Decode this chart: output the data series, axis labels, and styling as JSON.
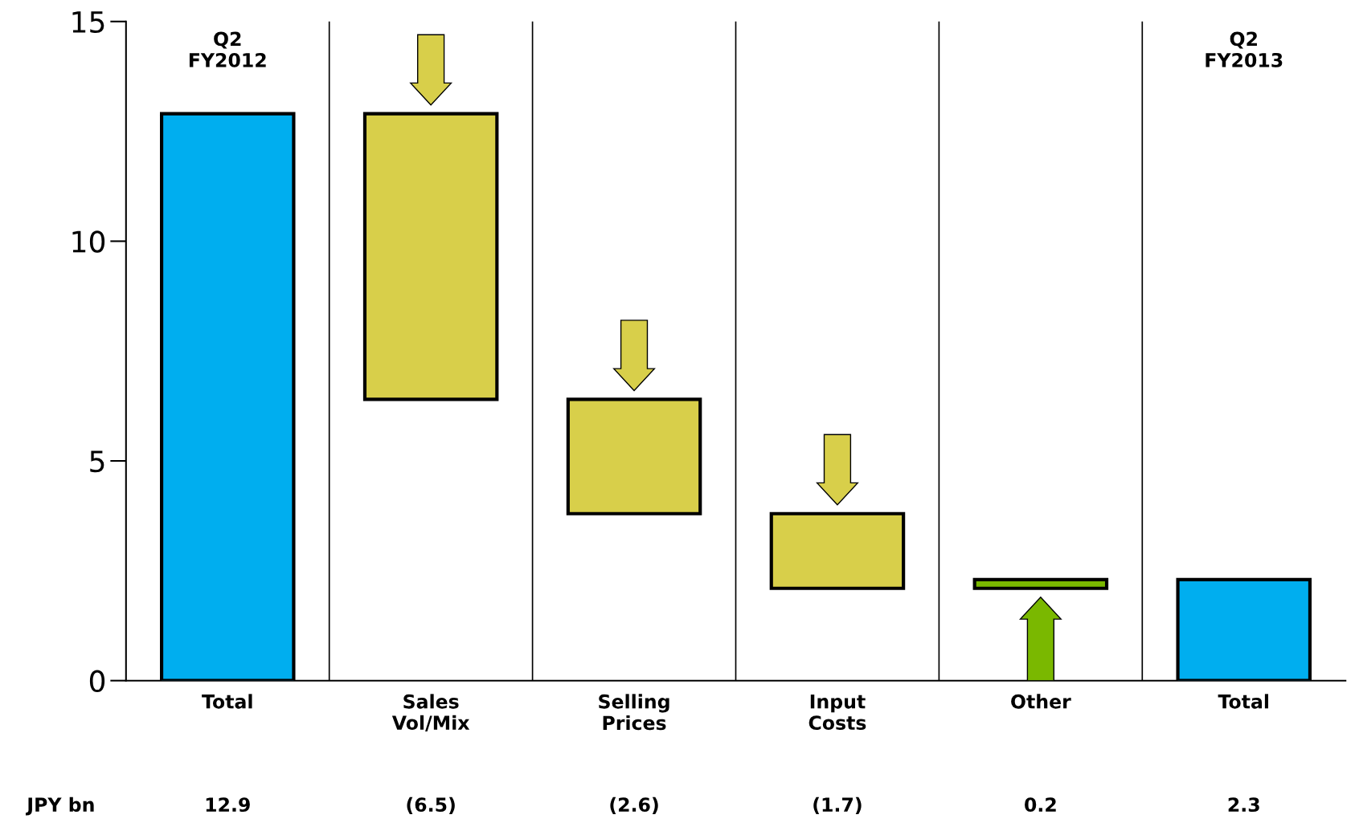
{
  "chart_data": {
    "type": "bar",
    "categories": [
      "Total",
      "Sales\nVol/Mix",
      "Selling\nPrices",
      "Input\nCosts",
      "Other",
      "Total"
    ],
    "values": [
      12.9,
      -6.5,
      -2.6,
      -1.7,
      0.2,
      2.3
    ],
    "base": [
      0,
      12.9,
      6.4,
      3.8,
      2.1,
      0
    ],
    "colors": [
      "#00aeef",
      "#d8cf4a",
      "#d8cf4a",
      "#d8cf4a",
      "#7ab800",
      "#00aeef"
    ],
    "value_labels": [
      "12.9",
      "(6.5)",
      "(2.6)",
      "(1.7)",
      "0.2",
      "2.3"
    ],
    "annotations": [
      "Q2\nFY2012",
      "Q2\nFY2013",
      "JPY bn"
    ],
    "ylim": [
      0,
      15
    ],
    "yticks": [
      0,
      5,
      10,
      15
    ],
    "grid": "x"
  }
}
